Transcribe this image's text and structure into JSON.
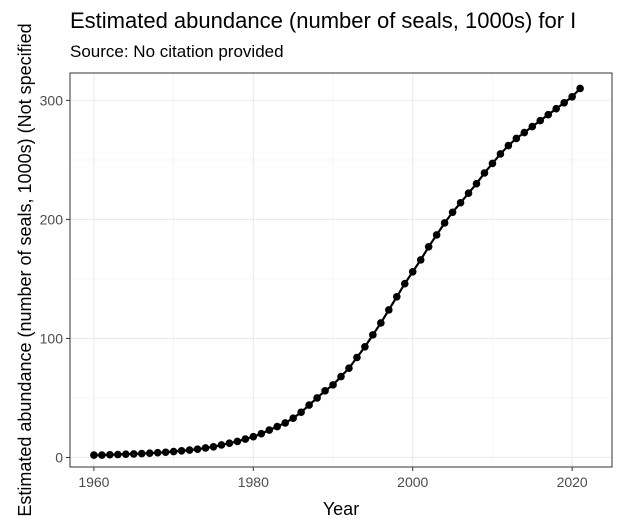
{
  "chart_data": {
    "type": "line",
    "title": "Estimated abundance (number of seals, 1000s) for I",
    "subtitle": "Source: No citation provided",
    "xlabel": "Year",
    "ylabel": "Estimated abundance (number of seals, 1000s) (Not specified",
    "xlim": [
      1957,
      2025
    ],
    "ylim": [
      -8,
      323
    ],
    "x_ticks": [
      1960,
      1980,
      2000,
      2020
    ],
    "y_ticks": [
      0,
      100,
      200,
      300
    ],
    "grid": true,
    "legend": "none",
    "series": [
      {
        "color": "#000000",
        "x": [
          1960,
          1961,
          1962,
          1963,
          1964,
          1965,
          1966,
          1967,
          1968,
          1969,
          1970,
          1971,
          1972,
          1973,
          1974,
          1975,
          1976,
          1977,
          1978,
          1979,
          1980,
          1981,
          1982,
          1983,
          1984,
          1985,
          1986,
          1987,
          1988,
          1989,
          1990,
          1991,
          1992,
          1993,
          1994,
          1995,
          1996,
          1997,
          1998,
          1999,
          2000,
          2001,
          2002,
          2003,
          2004,
          2005,
          2006,
          2007,
          2008,
          2009,
          2010,
          2011,
          2012,
          2013,
          2014,
          2015,
          2016,
          2017,
          2018,
          2019,
          2020,
          2021
        ],
        "y": [
          2,
          2,
          2.3,
          2.5,
          2.8,
          3,
          3.3,
          3.6,
          4,
          4.4,
          5,
          5.6,
          6.2,
          7,
          8,
          9,
          10.5,
          12,
          13.5,
          15.5,
          17.5,
          20,
          23,
          26,
          29,
          33,
          38,
          44,
          50,
          56,
          61,
          68,
          75,
          84,
          93,
          103,
          113,
          124,
          135,
          146,
          156,
          166,
          177,
          187,
          197,
          206,
          214,
          222,
          230,
          239,
          247,
          255,
          262,
          268,
          273,
          278,
          283,
          288,
          293,
          298,
          303,
          310
        ]
      }
    ]
  }
}
